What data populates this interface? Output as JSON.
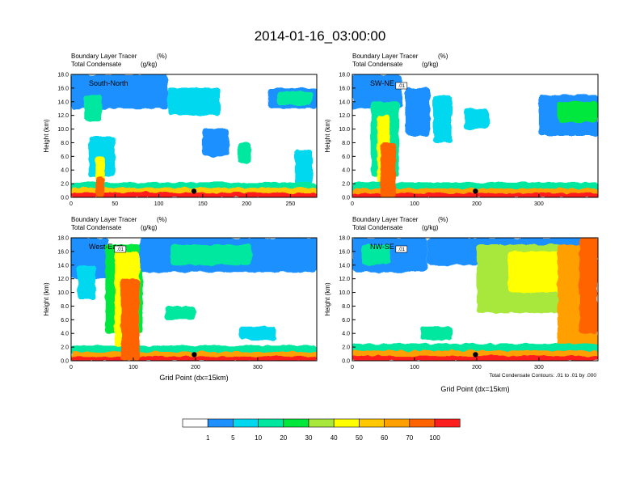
{
  "figure_title": "2014-01-16_03:00:00",
  "chart_data": [
    {
      "type": "heatmap",
      "panel_label": "South-North",
      "title_line1": "Boundary Layer Tracer",
      "title_line1_unit": "(%)",
      "title_line2": "Total Condensate",
      "title_line2_unit": "(g/kg)",
      "ylabel": "Height (km)",
      "xlabel": "",
      "xlim": [
        0,
        280
      ],
      "ylim": [
        0,
        18
      ],
      "xticks": [
        0,
        50,
        100,
        150,
        200,
        250
      ],
      "yticks": [
        "0.0",
        "2.0",
        "4.0",
        "6.0",
        "8.0",
        "10.0",
        "12.0",
        "14.0",
        "16.0",
        "18.0"
      ],
      "marker_point": [
        140,
        0.9
      ],
      "contour_label": "",
      "footnote": ""
    },
    {
      "type": "heatmap",
      "panel_label": "SW-NE",
      "title_line1": "Boundary Layer Tracer",
      "title_line1_unit": "(%)",
      "title_line2": "Total Condensate",
      "title_line2_unit": "(g/kg)",
      "ylabel": "Height (km)",
      "xlabel": "",
      "xlim": [
        0,
        395
      ],
      "ylim": [
        0,
        18
      ],
      "xticks": [
        0,
        100,
        200,
        300
      ],
      "yticks": [
        "0.0",
        "2.0",
        "4.0",
        "6.0",
        "8.0",
        "10.0",
        "12.0",
        "14.0",
        "16.0",
        "18.0"
      ],
      "marker_point": [
        198,
        0.9
      ],
      "contour_label": ".01",
      "footnote": ""
    },
    {
      "type": "heatmap",
      "panel_label": "West-East",
      "title_line1": "Boundary Layer Tracer",
      "title_line1_unit": "(%)",
      "title_line2": "Total Condensate",
      "title_line2_unit": "(g/kg)",
      "ylabel": "Height (km)",
      "xlabel": "Grid Point (dx=15km)",
      "xlim": [
        0,
        395
      ],
      "ylim": [
        0,
        18
      ],
      "xticks": [
        0,
        100,
        200,
        300
      ],
      "yticks": [
        "0.0",
        "2.0",
        "4.0",
        "6.0",
        "8.0",
        "10.0",
        "12.0",
        "14.0",
        "16.0",
        "18.0"
      ],
      "marker_point": [
        198,
        0.9
      ],
      "contour_label": ".01",
      "footnote": ""
    },
    {
      "type": "heatmap",
      "panel_label": "NW-SE",
      "title_line1": "Boundary Layer Tracer",
      "title_line1_unit": "(%)",
      "title_line2": "Total Condensate",
      "title_line2_unit": "(g/kg)",
      "ylabel": "Height (km)",
      "xlabel": "Grid Point (dx=15km)",
      "xlim": [
        0,
        395
      ],
      "ylim": [
        0,
        18
      ],
      "xticks": [
        0,
        100,
        200,
        300
      ],
      "yticks": [
        "0.0",
        "2.0",
        "4.0",
        "6.0",
        "8.0",
        "10.0",
        "12.0",
        "14.0",
        "16.0",
        "18.0"
      ],
      "marker_point": [
        198,
        0.9
      ],
      "contour_label": ".01",
      "footnote": "Total Condensate Contours: .01 to .01 by .000"
    }
  ],
  "colorbar": {
    "levels": [
      "1",
      "5",
      "10",
      "20",
      "30",
      "40",
      "50",
      "60",
      "70",
      "100"
    ],
    "colors": [
      "#ffffff",
      "#1e90ff",
      "#00d8f0",
      "#00e8a0",
      "#00e83c",
      "#a8e83c",
      "#ffff00",
      "#ffc800",
      "#ffa000",
      "#ff6400",
      "#ff1e1e"
    ]
  }
}
